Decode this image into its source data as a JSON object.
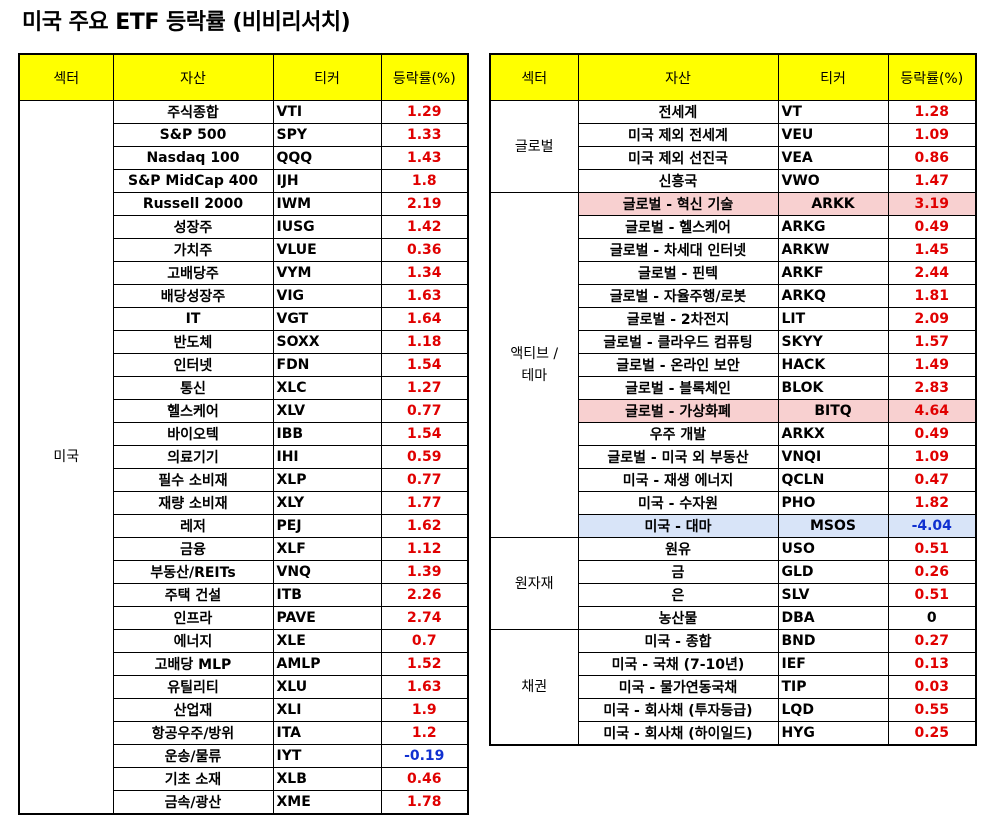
{
  "title": "미국 주요 ETF 등락률 (비비리서치)",
  "colors": {
    "header_bg": "#ffff00",
    "positive": "#e00000",
    "negative": "#1030d0",
    "highlight_pink": "#f8d0d0",
    "highlight_blue": "#d8e4f8"
  },
  "headers": {
    "sector": "섹터",
    "asset": "자산",
    "ticker": "티커",
    "change": "등락률(%)"
  },
  "left_table": {
    "groups": [
      {
        "sector": "미국",
        "rows": [
          {
            "asset": "주식종합",
            "ticker": "VTI",
            "change": "1.29"
          },
          {
            "asset": "S&P 500",
            "ticker": "SPY",
            "change": "1.33"
          },
          {
            "asset": "Nasdaq 100",
            "ticker": "QQQ",
            "change": "1.43"
          },
          {
            "asset": "S&P MidCap 400",
            "ticker": "IJH",
            "change": "1.8"
          },
          {
            "asset": "Russell 2000",
            "ticker": "IWM",
            "change": "2.19"
          },
          {
            "asset": "성장주",
            "ticker": "IUSG",
            "change": "1.42"
          },
          {
            "asset": "가치주",
            "ticker": "VLUE",
            "change": "0.36"
          },
          {
            "asset": "고배당주",
            "ticker": "VYM",
            "change": "1.34"
          },
          {
            "asset": "배당성장주",
            "ticker": "VIG",
            "change": "1.63"
          },
          {
            "asset": "IT",
            "ticker": "VGT",
            "change": "1.64"
          },
          {
            "asset": "반도체",
            "ticker": "SOXX",
            "change": "1.18"
          },
          {
            "asset": "인터넷",
            "ticker": "FDN",
            "change": "1.54"
          },
          {
            "asset": "통신",
            "ticker": "XLC",
            "change": "1.27"
          },
          {
            "asset": "헬스케어",
            "ticker": "XLV",
            "change": "0.77"
          },
          {
            "asset": "바이오텍",
            "ticker": "IBB",
            "change": "1.54"
          },
          {
            "asset": "의료기기",
            "ticker": "IHI",
            "change": "0.59"
          },
          {
            "asset": "필수 소비재",
            "ticker": "XLP",
            "change": "0.77"
          },
          {
            "asset": "재량 소비재",
            "ticker": "XLY",
            "change": "1.77"
          },
          {
            "asset": "레저",
            "ticker": "PEJ",
            "change": "1.62"
          },
          {
            "asset": "금융",
            "ticker": "XLF",
            "change": "1.12"
          },
          {
            "asset": "부동산/REITs",
            "ticker": "VNQ",
            "change": "1.39"
          },
          {
            "asset": "주택 건설",
            "ticker": "ITB",
            "change": "2.26"
          },
          {
            "asset": "인프라",
            "ticker": "PAVE",
            "change": "2.74"
          },
          {
            "asset": "에너지",
            "ticker": "XLE",
            "change": "0.7"
          },
          {
            "asset": "고배당 MLP",
            "ticker": "AMLP",
            "change": "1.52"
          },
          {
            "asset": "유틸리티",
            "ticker": "XLU",
            "change": "1.63"
          },
          {
            "asset": "산업재",
            "ticker": "XLI",
            "change": "1.9"
          },
          {
            "asset": "항공우주/방위",
            "ticker": "ITA",
            "change": "1.2"
          },
          {
            "asset": "운송/물류",
            "ticker": "IYT",
            "change": "-0.19"
          },
          {
            "asset": "기초 소재",
            "ticker": "XLB",
            "change": "0.46"
          },
          {
            "asset": "금속/광산",
            "ticker": "XME",
            "change": "1.78"
          }
        ]
      }
    ]
  },
  "right_table": {
    "groups": [
      {
        "sector": "글로벌",
        "rows": [
          {
            "asset": "전세계",
            "ticker": "VT",
            "change": "1.28"
          },
          {
            "asset": "미국 제외 전세계",
            "ticker": "VEU",
            "change": "1.09"
          },
          {
            "asset": "미국 제외 선진국",
            "ticker": "VEA",
            "change": "0.86"
          },
          {
            "asset": "신흥국",
            "ticker": "VWO",
            "change": "1.47"
          }
        ]
      },
      {
        "sector": "액티브 / 테마",
        "rows": [
          {
            "asset": "글로벌 - 혁신 기술",
            "ticker": "ARKK",
            "change": "3.19",
            "highlight": "pink"
          },
          {
            "asset": "글로벌 - 헬스케어",
            "ticker": "ARKG",
            "change": "0.49"
          },
          {
            "asset": "글로벌 - 차세대 인터넷",
            "ticker": "ARKW",
            "change": "1.45"
          },
          {
            "asset": "글로벌 - 핀텍",
            "ticker": "ARKF",
            "change": "2.44"
          },
          {
            "asset": "글로벌 - 자율주행/로봇",
            "ticker": "ARKQ",
            "change": "1.81"
          },
          {
            "asset": "글로벌 - 2차전지",
            "ticker": "LIT",
            "change": "2.09"
          },
          {
            "asset": "글로벌 - 클라우드 컴퓨팅",
            "ticker": "SKYY",
            "change": "1.57"
          },
          {
            "asset": "글로벌 - 온라인 보안",
            "ticker": "HACK",
            "change": "1.49"
          },
          {
            "asset": "글로벌 - 블록체인",
            "ticker": "BLOK",
            "change": "2.83"
          },
          {
            "asset": "글로벌 - 가상화폐",
            "ticker": "BITQ",
            "change": "4.64",
            "highlight": "pink"
          },
          {
            "asset": "우주 개발",
            "ticker": "ARKX",
            "change": "0.49"
          },
          {
            "asset": "글로벌 - 미국 외 부동산",
            "ticker": "VNQI",
            "change": "1.09"
          },
          {
            "asset": "미국 - 재생 에너지",
            "ticker": "QCLN",
            "change": "0.47"
          },
          {
            "asset": "미국 - 수자원",
            "ticker": "PHO",
            "change": "1.82"
          },
          {
            "asset": "미국 - 대마",
            "ticker": "MSOS",
            "change": "-4.04",
            "highlight": "blue"
          }
        ]
      },
      {
        "sector": "원자재",
        "rows": [
          {
            "asset": "원유",
            "ticker": "USO",
            "change": "0.51"
          },
          {
            "asset": "금",
            "ticker": "GLD",
            "change": "0.26"
          },
          {
            "asset": "은",
            "ticker": "SLV",
            "change": "0.51"
          },
          {
            "asset": "농산물",
            "ticker": "DBA",
            "change": "0"
          }
        ]
      },
      {
        "sector": "채권",
        "rows": [
          {
            "asset": "미국 - 종합",
            "ticker": "BND",
            "change": "0.27"
          },
          {
            "asset": "미국 - 국채 (7-10년)",
            "ticker": "IEF",
            "change": "0.13"
          },
          {
            "asset": "미국 - 물가연동국채",
            "ticker": "TIP",
            "change": "0.03"
          },
          {
            "asset": "미국 - 회사채 (투자등급)",
            "ticker": "LQD",
            "change": "0.55"
          },
          {
            "asset": "미국 - 회사채 (하이일드)",
            "ticker": "HYG",
            "change": "0.25"
          }
        ]
      }
    ]
  }
}
